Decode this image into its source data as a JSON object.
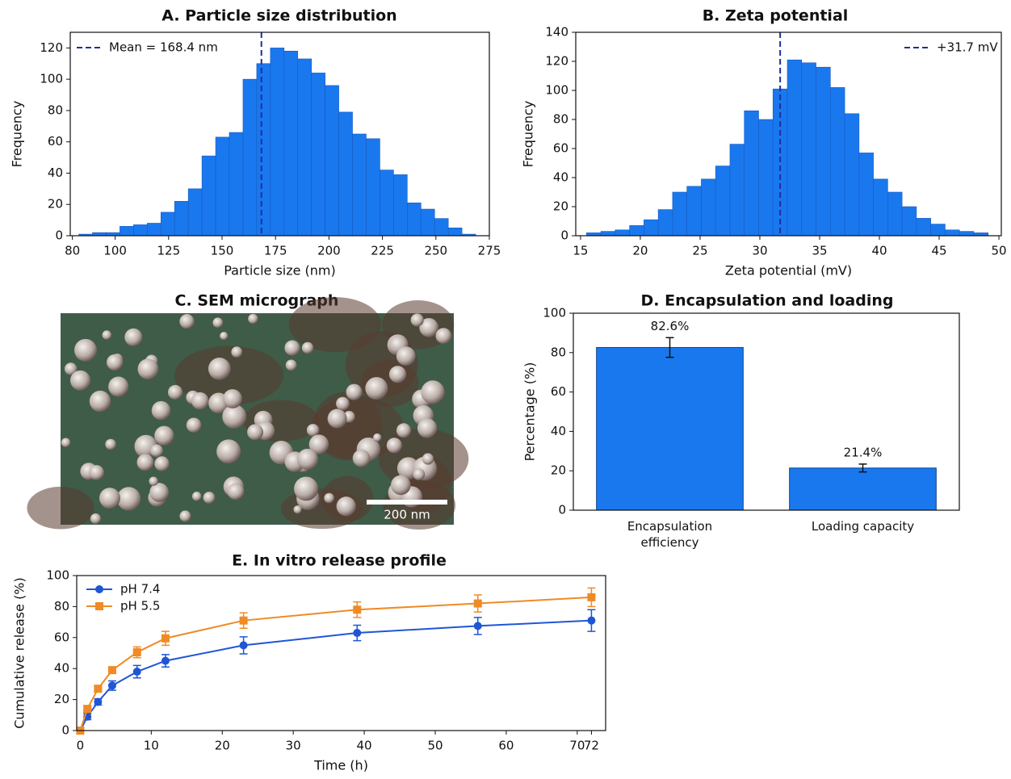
{
  "chart_data": [
    {
      "type": "histogram",
      "title": "A. Particle size distribution",
      "xlabel": "Particle size (nm)",
      "ylabel": "Frequency",
      "bins": [
        83,
        89.4,
        95.8,
        102.2,
        108.6,
        115,
        121.4,
        127.8,
        134.2,
        140.6,
        147,
        153.4,
        159.8,
        166.2,
        172.6,
        179,
        185.4,
        191.8,
        198.2,
        204.6,
        211,
        217.4,
        223.8,
        230.2,
        236.6,
        243,
        249.4,
        255.8,
        262.2,
        268.6
      ],
      "values": [
        1,
        2,
        2,
        6,
        7,
        8,
        15,
        22,
        30,
        51,
        63,
        66,
        100,
        110,
        120,
        118,
        113,
        104,
        96,
        79,
        65,
        62,
        42,
        39,
        21,
        17,
        11,
        5,
        1
      ],
      "color": "#1a78ee",
      "xlim": [
        79,
        275
      ],
      "xticks": [
        80,
        100,
        125,
        150,
        175,
        200,
        225,
        250,
        275
      ],
      "ylim": [
        0,
        130
      ],
      "yticks": [
        0,
        20,
        40,
        60,
        80,
        100,
        120
      ],
      "mean_line": {
        "value": 168.4,
        "label": "Mean = 168.4 nm",
        "color": "#1d2f9c"
      },
      "legend": "upper left"
    },
    {
      "type": "histogram",
      "title": "B. Zeta potential",
      "xlabel": "Zeta potential (mV)",
      "ylabel": "Frequency",
      "bins": [
        15.5,
        16.7,
        17.9,
        19.1,
        20.3,
        21.5,
        22.7,
        23.9,
        25.1,
        26.3,
        27.5,
        28.7,
        29.9,
        31.1,
        32.3,
        33.5,
        34.7,
        35.9,
        37.1,
        38.3,
        39.5,
        40.7,
        41.9,
        43.1,
        44.3,
        45.5,
        46.7,
        47.9,
        49.1
      ],
      "values": [
        2,
        3,
        4,
        7,
        11,
        18,
        30,
        34,
        39,
        48,
        63,
        86,
        80,
        101,
        121,
        119,
        116,
        102,
        84,
        57,
        39,
        30,
        20,
        12,
        8,
        4,
        3,
        2
      ],
      "color": "#1a78ee",
      "xlim": [
        14.6,
        50.2
      ],
      "xticks": [
        15,
        20,
        25,
        30,
        35,
        40,
        45,
        50
      ],
      "ylim": [
        0,
        140
      ],
      "yticks": [
        0,
        20,
        40,
        60,
        80,
        100,
        120,
        140
      ],
      "mean_line": {
        "value": 31.7,
        "label": "+31.7 mV",
        "color": "#1d2f9c"
      },
      "legend": "upper right"
    },
    {
      "type": "image",
      "title": "C. SEM micrograph",
      "scale_bar_label": "200 nm"
    },
    {
      "type": "bar",
      "title": "D. Encapsulation and loading",
      "ylabel": "Percentage (%)",
      "categories": [
        "Encapsulation efficiency",
        "Loading capacity"
      ],
      "values": [
        82.6,
        21.4
      ],
      "errors": [
        5,
        2
      ],
      "value_labels": [
        "82.6%",
        "21.4%"
      ],
      "color": "#1a78ee",
      "ylim": [
        0,
        100
      ],
      "yticks": [
        0,
        20,
        40,
        60,
        80,
        100
      ]
    },
    {
      "type": "line",
      "title": "E. In vitro release profile",
      "xlabel": "Time (h)",
      "ylabel": "Cumulative release (%)",
      "x": [
        0,
        1,
        2.5,
        4.5,
        8,
        12,
        23,
        39,
        56,
        72
      ],
      "series": [
        {
          "name": "pH 7.4",
          "color": "#1f56d6",
          "marker": "circle",
          "values": [
            0,
            9,
            18.5,
            29,
            38,
            45,
            55,
            63,
            67.5,
            71
          ],
          "errors": [
            0,
            2,
            2,
            3,
            4,
            4,
            5.5,
            5,
            5.5,
            7
          ]
        },
        {
          "name": "pH 5.5",
          "color": "#f08a24",
          "marker": "square",
          "values": [
            0,
            14,
            27,
            39,
            50.5,
            59.5,
            71,
            78,
            82,
            86
          ],
          "errors": [
            0,
            2,
            2,
            2,
            3.5,
            4.5,
            5,
            5,
            5.5,
            6
          ]
        }
      ],
      "xlim": [
        -0.5,
        74
      ],
      "xticks": [
        0,
        10,
        20,
        30,
        40,
        50,
        60,
        70,
        72
      ],
      "ylim": [
        0,
        100
      ],
      "yticks": [
        0,
        20,
        40,
        60,
        80,
        100
      ],
      "legend": "upper left"
    }
  ]
}
